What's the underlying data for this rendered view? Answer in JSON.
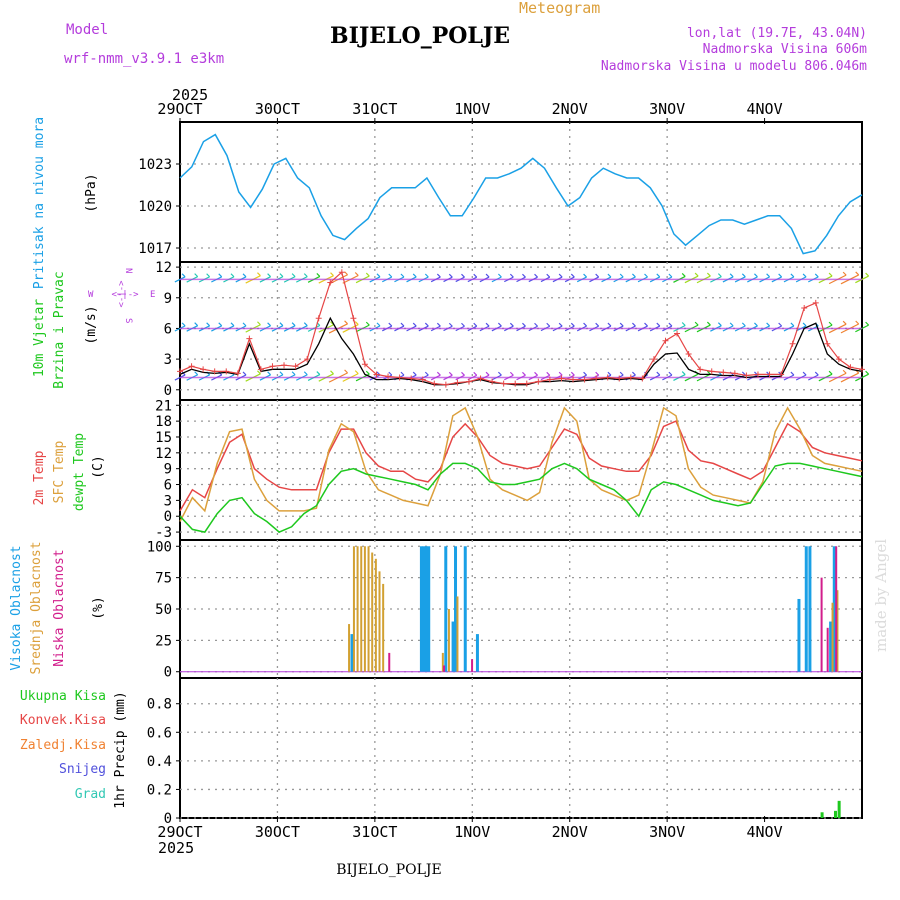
{
  "header": {
    "model_label": "Model",
    "model_name": "wrf-nmm_v3.9.1 e3km",
    "meteogram_label": "Meteogram",
    "station": "BIJELO_POLJE",
    "lonlat": "lon,lat (19.7E, 43.04N)",
    "altitude": "Nadmorska Visina 606m",
    "model_altitude": "Nadmorska Visina u modelu 806.046m",
    "watermark": "made by Angel",
    "footer_station": "BIJELO_POLJE"
  },
  "colors": {
    "pressure": "#1aa0e6",
    "wind10": "#1ec81e",
    "temp2m": "#e64646",
    "sfc": "#dca03c",
    "dew": "#1ec81e",
    "high": "#1aa0e6",
    "mid": "#d2a032",
    "low": "#d21e8c",
    "purple": "#b43cdc",
    "grad": "#32c8b4",
    "snow": "#5050dc",
    "ice": "#f08232",
    "conv": "#e64646",
    "total": "#1ec81e"
  },
  "chart_data": {
    "type": "meteogram",
    "time_axis": {
      "year": "2025",
      "start": "29OCT",
      "end": "4NOV",
      "step_hours": 3,
      "tick_labels": [
        "29OCT",
        "30OCT",
        "31OCT",
        "1NOV",
        "2NOV",
        "3NOV",
        "4NOV"
      ]
    },
    "panels": [
      {
        "id": "pressure",
        "ylabel": "Pritisak na nivou mora",
        "unit": "(hPa)",
        "yticks": [
          1017,
          1020,
          1023
        ],
        "ylim": [
          1016.0,
          1026.0
        ],
        "series": [
          {
            "name": "MSLP",
            "color_key": "pressure",
            "values": [
              1022.0,
              1022.8,
              1024.6,
              1025.1,
              1023.6,
              1021.0,
              1019.9,
              1021.2,
              1023.0,
              1023.4,
              1022.0,
              1021.3,
              1019.3,
              1017.9,
              1017.6,
              1018.4,
              1019.1,
              1020.6,
              1021.3,
              1021.3,
              1021.3,
              1022.0,
              1020.6,
              1019.3,
              1019.3,
              1020.6,
              1022.0,
              1022.0,
              1022.3,
              1022.7,
              1023.4,
              1022.7,
              1021.3,
              1020.0,
              1020.6,
              1022.0,
              1022.7,
              1022.3,
              1022.0,
              1022.0,
              1021.3,
              1020.0,
              1018.0,
              1017.2,
              1017.9,
              1018.6,
              1019.0,
              1019.0,
              1018.7,
              1019.0,
              1019.3,
              1019.3,
              1018.4,
              1016.6,
              1016.8,
              1017.9,
              1019.3,
              1020.3,
              1020.8
            ]
          }
        ]
      },
      {
        "id": "wind",
        "ylabel_lines": [
          "10m Vjetar",
          "Brzina i Pravac"
        ],
        "unit": "(m/s)",
        "compass": {
          "n": "N",
          "s": "S",
          "w": "W",
          "e": "E",
          "sep": "<-|->"
        },
        "yticks": [
          0,
          3,
          6,
          9,
          12
        ],
        "ylim": [
          -1,
          12.5
        ],
        "barb_levels": [
          1.2,
          6.0,
          10.8
        ],
        "series": [
          {
            "name": "10m speed",
            "color_key": "wind10",
            "values": [
              1.5,
              2.0,
              1.7,
              1.6,
              1.7,
              1.5,
              4.5,
              1.8,
              2.0,
              2.0,
              2.0,
              2.5,
              4.5,
              7.0,
              5.0,
              3.5,
              1.5,
              1.0,
              1.0,
              1.1,
              1.0,
              0.8,
              0.5,
              0.5,
              0.6,
              0.8,
              1.0,
              0.7,
              0.6,
              0.5,
              0.5,
              0.8,
              0.8,
              0.9,
              0.8,
              0.9,
              1.0,
              1.1,
              1.0,
              1.1,
              1.0,
              2.5,
              3.5,
              3.6,
              2.0,
              1.5,
              1.5,
              1.4,
              1.4,
              1.2,
              1.3,
              1.3,
              1.3,
              3.5,
              6.0,
              6.5,
              3.5,
              2.5,
              2.0,
              1.8
            ]
          },
          {
            "name": "Gust",
            "color_key": "temp2m",
            "values": [
              1.8,
              2.3,
              2.0,
              1.8,
              1.8,
              1.6,
              5.0,
              2.0,
              2.3,
              2.4,
              2.3,
              3.0,
              7.0,
              10.5,
              11.5,
              7.0,
              2.5,
              1.5,
              1.3,
              1.2,
              1.1,
              1.0,
              0.6,
              0.5,
              0.7,
              0.8,
              1.1,
              0.8,
              0.6,
              0.6,
              0.6,
              0.8,
              1.0,
              1.1,
              1.0,
              1.0,
              1.1,
              1.2,
              1.1,
              1.2,
              1.1,
              3.0,
              4.8,
              5.5,
              3.5,
              2.0,
              1.8,
              1.7,
              1.6,
              1.4,
              1.5,
              1.5,
              1.5,
              4.5,
              8.0,
              8.5,
              4.5,
              3.0,
              2.2,
              2.0
            ]
          }
        ]
      },
      {
        "id": "temperature",
        "ylabel_lines": [
          "2m Temp",
          "SFC Temp",
          "dewpt Temp"
        ],
        "unit": "(C)",
        "yticks": [
          -3,
          0,
          3,
          6,
          9,
          12,
          15,
          18,
          21
        ],
        "ylim": [
          -4.5,
          22.0
        ],
        "series": [
          {
            "name": "2m Temp",
            "color_key": "temp2m",
            "values": [
              1.0,
              5.0,
              3.5,
              9.0,
              14.0,
              15.5,
              9.0,
              7.0,
              5.5,
              5.0,
              5.0,
              5.0,
              12.0,
              16.5,
              16.5,
              12.0,
              9.5,
              8.5,
              8.5,
              7.0,
              6.5,
              9.0,
              15.0,
              17.5,
              15.0,
              11.5,
              10.0,
              9.5,
              9.0,
              9.5,
              13.0,
              16.5,
              15.5,
              11.0,
              9.5,
              9.0,
              8.5,
              8.5,
              11.5,
              17.0,
              18.0,
              12.5,
              10.5,
              10.0,
              9.0,
              8.0,
              7.0,
              8.5,
              13.0,
              17.5,
              16.0,
              13.0,
              12.0,
              11.5,
              11.0,
              10.5
            ]
          },
          {
            "name": "SFC Temp",
            "color_key": "sfc",
            "values": [
              -1.0,
              3.5,
              1.0,
              10.0,
              16.0,
              16.5,
              7.0,
              3.0,
              1.0,
              1.0,
              1.0,
              1.5,
              12.5,
              17.5,
              16.0,
              8.5,
              5.0,
              4.0,
              3.0,
              2.5,
              2.0,
              8.0,
              19.0,
              20.5,
              15.0,
              7.0,
              5.0,
              4.0,
              3.0,
              4.5,
              14.0,
              20.5,
              18.0,
              7.0,
              5.0,
              4.0,
              3.0,
              4.0,
              12.0,
              20.5,
              19.0,
              9.0,
              5.5,
              4.0,
              3.5,
              3.0,
              2.5,
              6.5,
              16.0,
              20.5,
              16.5,
              11.5,
              10.0,
              9.5,
              9.0,
              8.5
            ]
          },
          {
            "name": "Dewpt Temp",
            "color_key": "dew",
            "values": [
              0.0,
              -2.5,
              -3.0,
              0.5,
              3.0,
              3.5,
              0.5,
              -1.0,
              -3.0,
              -2.0,
              0.5,
              2.0,
              6.0,
              8.5,
              9.0,
              8.0,
              7.5,
              7.0,
              6.5,
              6.0,
              5.0,
              8.0,
              10.0,
              10.0,
              9.0,
              6.5,
              6.0,
              6.0,
              6.5,
              7.0,
              9.0,
              10.0,
              9.0,
              7.0,
              6.0,
              5.0,
              3.0,
              0.0,
              5.0,
              6.5,
              6.0,
              5.0,
              4.0,
              3.0,
              2.5,
              2.0,
              2.5,
              6.0,
              9.5,
              10.0,
              10.0,
              9.5,
              9.0,
              8.5,
              8.0,
              7.5
            ]
          }
        ]
      },
      {
        "id": "cloud",
        "ylabel_lines": [
          "Visoka Oblacnost",
          "Srednja Oblacnost",
          "Niska Oblacnost"
        ],
        "unit": "(%)",
        "yticks": [
          0,
          25,
          50,
          75,
          100
        ],
        "ylim": [
          -5,
          105
        ],
        "series": [
          {
            "name": "Visoka",
            "color_key": "high",
            "bars": [
              [
                14.0,
                30
              ],
              [
                19.7,
                100
              ],
              [
                19.9,
                100
              ],
              [
                20.1,
                100
              ],
              [
                20.3,
                100
              ],
              [
                21.7,
                100
              ],
              [
                22.3,
                40
              ],
              [
                22.5,
                100
              ],
              [
                23.3,
                100
              ],
              [
                24.3,
                30
              ],
              [
                50.7,
                58
              ],
              [
                51.3,
                100
              ],
              [
                51.6,
                100
              ],
              [
                53.3,
                40
              ],
              [
                53.6,
                100
              ]
            ]
          },
          {
            "name": "Srednja",
            "color_key": "mid",
            "bars": [
              [
                13.8,
                38
              ],
              [
                14.2,
                100
              ],
              [
                14.5,
                100
              ],
              [
                14.8,
                100
              ],
              [
                15.1,
                100
              ],
              [
                15.4,
                100
              ],
              [
                15.7,
                95
              ],
              [
                16.0,
                90
              ],
              [
                16.3,
                80
              ],
              [
                16.6,
                70
              ],
              [
                21.5,
                15
              ],
              [
                22.0,
                50
              ],
              [
                22.7,
                60
              ],
              [
                53.5,
                55
              ],
              [
                53.9,
                65
              ]
            ]
          },
          {
            "name": "Niska",
            "color_key": "low",
            "bars": [
              [
                17.1,
                15
              ],
              [
                21.6,
                5
              ],
              [
                23.9,
                10
              ],
              [
                52.6,
                75
              ],
              [
                53.1,
                35
              ],
              [
                53.8,
                100
              ]
            ]
          }
        ]
      },
      {
        "id": "precip",
        "ylabel": "1hr Precip (mm)",
        "legend": [
          "Ukupna Kisa",
          "Konvek.Kisa",
          "Zaledj.Kisa",
          "Snijeg",
          "Grad"
        ],
        "yticks": [
          0,
          0.2,
          0.4,
          0.6,
          0.8
        ],
        "ylim": [
          0,
          0.98
        ],
        "series": [
          {
            "name": "Ukupna Kisa",
            "color_key": "total",
            "bars": [
              [
                52.6,
                0.04
              ],
              [
                53.7,
                0.05
              ],
              [
                54.0,
                0.12
              ]
            ]
          }
        ]
      }
    ]
  }
}
